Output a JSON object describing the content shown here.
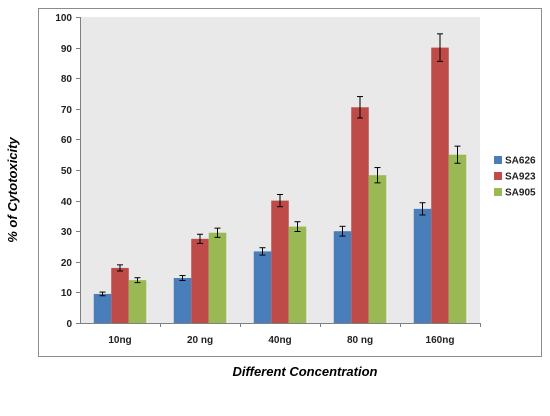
{
  "chart_data": {
    "type": "bar",
    "title": "",
    "xlabel": "Different Concentration",
    "ylabel": "% of Cytotoxicity",
    "categories": [
      "10ng",
      "20 ng",
      "40ng",
      "80 ng",
      "160ng"
    ],
    "ylim": [
      0,
      100
    ],
    "yticks": [
      0,
      10,
      20,
      30,
      40,
      50,
      60,
      70,
      80,
      90,
      100
    ],
    "grid": false,
    "legend_position": "right",
    "series": [
      {
        "name": "SA626",
        "color": "#4a7ebb",
        "values": [
          9.5,
          14.7,
          23.4,
          30.0,
          37.3
        ],
        "errors": [
          0.6,
          0.8,
          1.2,
          1.6,
          2.0
        ]
      },
      {
        "name": "SA923",
        "color": "#be4b48",
        "values": [
          18.0,
          27.5,
          40.0,
          70.5,
          90.0
        ],
        "errors": [
          1.0,
          1.5,
          2.0,
          3.5,
          4.5
        ]
      },
      {
        "name": "SA905",
        "color": "#98b954",
        "values": [
          14.0,
          29.5,
          31.5,
          48.3,
          55.0
        ],
        "errors": [
          0.8,
          1.5,
          1.6,
          2.5,
          2.8
        ]
      }
    ]
  }
}
